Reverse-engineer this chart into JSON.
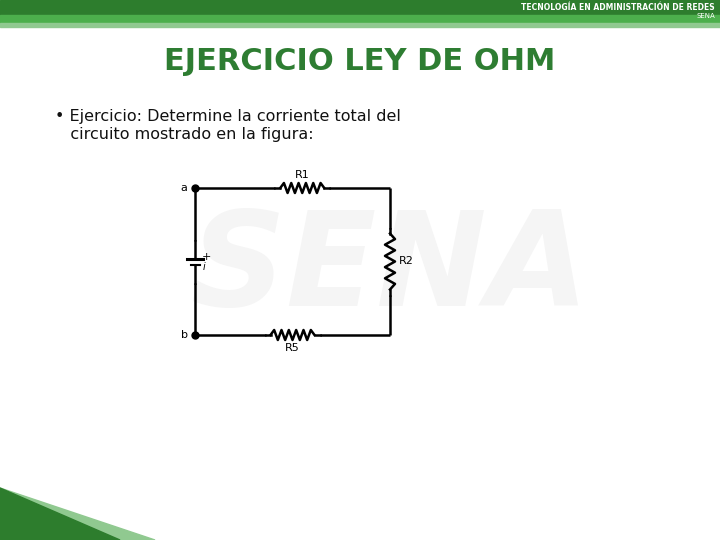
{
  "title": "EJERCICIO LEY DE OHM",
  "title_color": "#2E7D32",
  "bullet_line1": "• Ejercicio: Determine la corriente total del",
  "bullet_line2": "   circuito mostrado en la figura:",
  "bg_color": "#FFFFFF",
  "header_dark_green": "#2D7D2D",
  "header_mid_green": "#4CAF4C",
  "header_light_green": "#90C990",
  "header_text": "TECNOLOGÍA EN ADMINISTRACIÓN DE REDES",
  "header_subtext": "SENA",
  "footer_triangle_dark": "#2D7D2D",
  "footer_triangle_light": "#90C990",
  "circuit_color": "#000000",
  "label_R1": "R1",
  "label_R2": "R2",
  "label_R5": "R5",
  "label_a": "a",
  "label_b": "b",
  "watermark_color": "#C8C8C8"
}
